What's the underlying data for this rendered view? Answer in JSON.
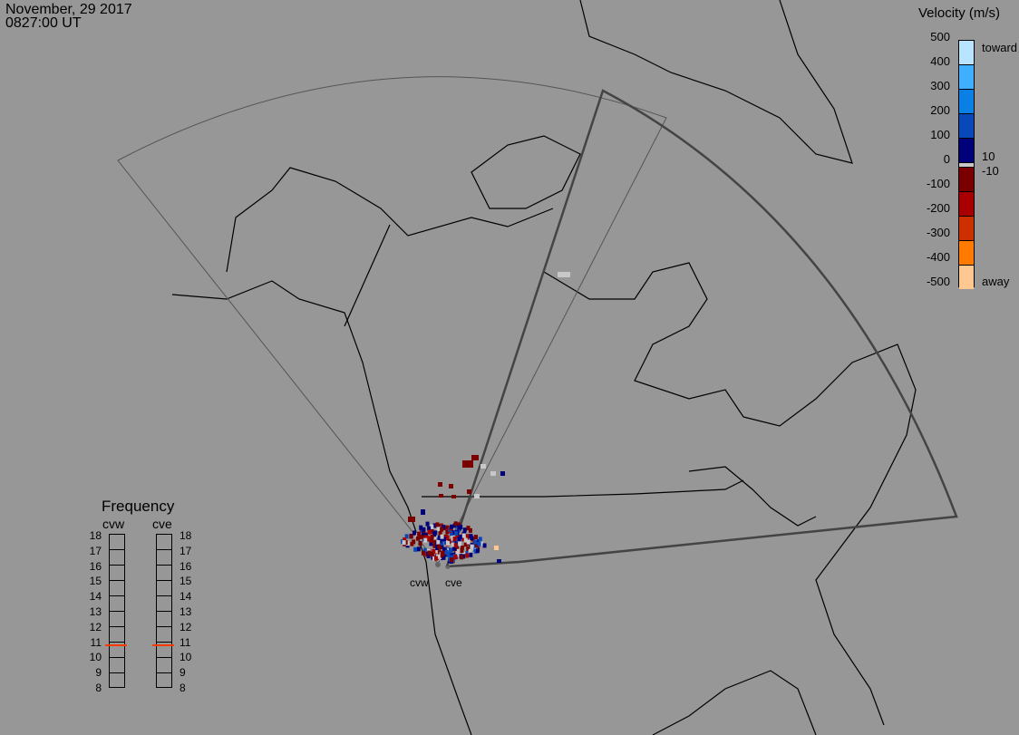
{
  "header": {
    "date": "November, 29 2017",
    "time": "0827:00 UT"
  },
  "colorbar": {
    "title": "Velocity (m/s)",
    "ticks": [
      "500",
      "400",
      "300",
      "200",
      "100",
      "0",
      "-100",
      "-200",
      "-300",
      "-400",
      "-500"
    ],
    "labels": {
      "toward": "toward",
      "away": "away",
      "pos_gs": "10",
      "neg_gs": "-10"
    },
    "colors": [
      "#b8e4ff",
      "#3fb0ff",
      "#0a80e6",
      "#0848b8",
      "#00007a",
      "#c8c8c8",
      "#7a0000",
      "#a80000",
      "#cc3000",
      "#ff7a00",
      "#ffc890"
    ]
  },
  "frequency": {
    "title": "Frequency",
    "unit_ticks": [
      "18",
      "17",
      "16",
      "15",
      "14",
      "13",
      "12",
      "11",
      "10",
      "9",
      "8"
    ],
    "radars": [
      {
        "name": "cvw",
        "value_mhz": 10.75
      },
      {
        "name": "cve",
        "value_mhz": 10.75
      }
    ],
    "marker_color": "#ff3a00"
  },
  "map": {
    "radar_labels": [
      "cvw",
      "cve"
    ]
  }
}
